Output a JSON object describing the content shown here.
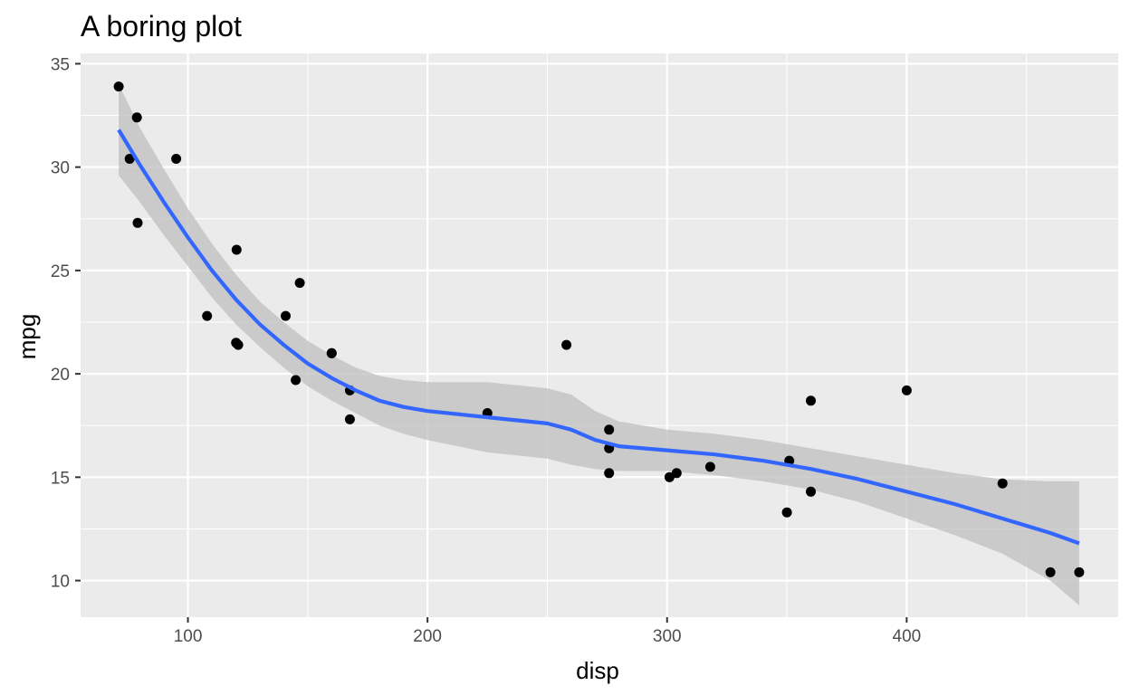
{
  "chart_data": {
    "type": "scatter",
    "title": "A boring plot",
    "xlabel": "disp",
    "ylabel": "mpg",
    "xlim": [
      55.2,
      488.3
    ],
    "ylim": [
      8.23,
      35.5
    ],
    "x_ticks": [
      100,
      200,
      300,
      400
    ],
    "x_ticks_minor": [
      150,
      250,
      350,
      450
    ],
    "y_ticks": [
      10,
      15,
      20,
      25,
      30,
      35
    ],
    "y_ticks_minor": [
      12.5,
      17.5,
      22.5,
      27.5,
      32.5
    ],
    "grid": true,
    "panel_background": "#ebebeb",
    "point_color": "#000000",
    "smooth_color": "#3366ff",
    "ribbon_color": "#bdbdbd",
    "points": [
      {
        "x": 71.1,
        "y": 33.9
      },
      {
        "x": 75.7,
        "y": 30.4
      },
      {
        "x": 78.7,
        "y": 32.4
      },
      {
        "x": 79.0,
        "y": 27.3
      },
      {
        "x": 95.1,
        "y": 30.4
      },
      {
        "x": 108.0,
        "y": 22.8
      },
      {
        "x": 120.1,
        "y": 21.5
      },
      {
        "x": 120.3,
        "y": 26.0
      },
      {
        "x": 121.0,
        "y": 21.4
      },
      {
        "x": 140.8,
        "y": 22.8
      },
      {
        "x": 145.0,
        "y": 19.7
      },
      {
        "x": 146.7,
        "y": 24.4
      },
      {
        "x": 160.0,
        "y": 21.0
      },
      {
        "x": 160.0,
        "y": 21.0
      },
      {
        "x": 167.6,
        "y": 19.2
      },
      {
        "x": 167.6,
        "y": 17.8
      },
      {
        "x": 225.0,
        "y": 18.1
      },
      {
        "x": 258.0,
        "y": 21.4
      },
      {
        "x": 275.8,
        "y": 16.4
      },
      {
        "x": 275.8,
        "y": 17.3
      },
      {
        "x": 275.8,
        "y": 15.2
      },
      {
        "x": 301.0,
        "y": 15.0
      },
      {
        "x": 304.0,
        "y": 15.2
      },
      {
        "x": 318.0,
        "y": 15.5
      },
      {
        "x": 350.0,
        "y": 13.3
      },
      {
        "x": 351.0,
        "y": 15.8
      },
      {
        "x": 360.0,
        "y": 18.7
      },
      {
        "x": 360.0,
        "y": 14.3
      },
      {
        "x": 400.0,
        "y": 19.2
      },
      {
        "x": 440.0,
        "y": 14.7
      },
      {
        "x": 460.0,
        "y": 10.4
      },
      {
        "x": 472.0,
        "y": 10.4
      }
    ],
    "smooth": {
      "method": "loess",
      "x": [
        71.1,
        80,
        90,
        100,
        110,
        120,
        130,
        140,
        150,
        160,
        170,
        180,
        190,
        200,
        225,
        250,
        260,
        270,
        280,
        300,
        320,
        340,
        360,
        380,
        400,
        420,
        440,
        460,
        472
      ],
      "y": [
        31.8,
        30.1,
        28.3,
        26.6,
        25.0,
        23.6,
        22.4,
        21.4,
        20.5,
        19.8,
        19.2,
        18.7,
        18.4,
        18.2,
        17.9,
        17.6,
        17.3,
        16.8,
        16.5,
        16.3,
        16.1,
        15.8,
        15.4,
        14.9,
        14.3,
        13.7,
        13.0,
        12.3,
        11.8
      ],
      "ymin": [
        29.6,
        28.3,
        26.7,
        25.2,
        23.7,
        22.4,
        21.3,
        20.3,
        19.4,
        18.7,
        18.1,
        17.5,
        17.1,
        16.8,
        16.2,
        15.9,
        15.6,
        15.4,
        15.3,
        15.3,
        15.1,
        14.8,
        14.4,
        13.8,
        13.0,
        12.2,
        11.3,
        10.0,
        8.8
      ],
      "ymax": [
        34.0,
        31.9,
        29.9,
        28.0,
        26.3,
        24.8,
        23.5,
        22.5,
        21.6,
        20.9,
        20.3,
        19.9,
        19.7,
        19.6,
        19.6,
        19.3,
        19.0,
        18.2,
        17.7,
        17.3,
        17.1,
        16.8,
        16.4,
        16.0,
        15.6,
        15.2,
        14.9,
        14.8,
        14.8
      ]
    }
  }
}
